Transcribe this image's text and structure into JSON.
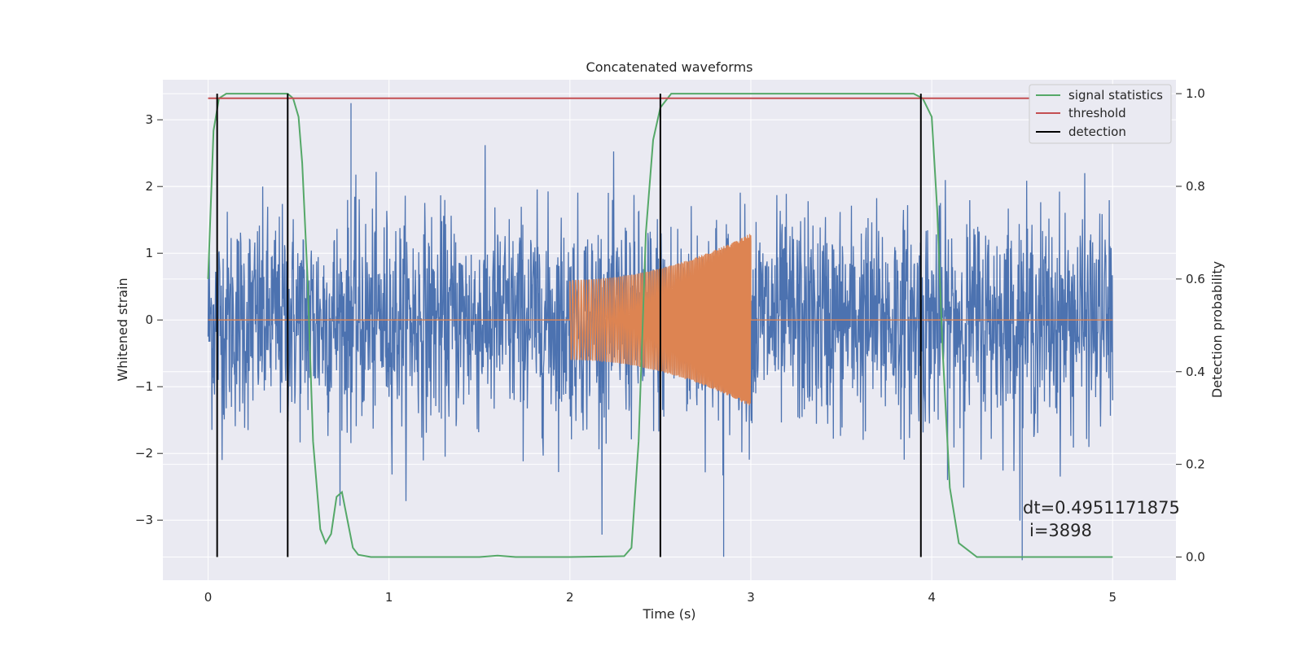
{
  "chart_data": {
    "type": "line",
    "title": "Concatenated waveforms",
    "xlabel": "Time (s)",
    "ylabel": "Whitened strain",
    "ylabel_right": "Detection probability",
    "xlim": [
      -0.25,
      5.35
    ],
    "ylim": [
      -3.9,
      3.6
    ],
    "ylim_right": [
      -0.05,
      1.03
    ],
    "xticks": [
      0,
      1,
      2,
      3,
      4,
      5
    ],
    "yticks": [
      -3,
      -2,
      -1,
      0,
      1,
      2,
      3
    ],
    "yticks_right": [
      0.0,
      0.2,
      0.4,
      0.6,
      0.8,
      1.0
    ],
    "xtick_labels": [
      "0",
      "1",
      "2",
      "3",
      "4",
      "5"
    ],
    "ytick_labels": [
      "−3",
      "−2",
      "−1",
      "0",
      "1",
      "2",
      "3"
    ],
    "ytick_right_labels": [
      "0.0",
      "0.2",
      "0.4",
      "0.6",
      "0.8",
      "1.0"
    ],
    "grid": true,
    "legend_position": "top-right",
    "colors": {
      "background": "#eaeaf2",
      "grid": "#ffffff",
      "noise": "#4c72b0",
      "signal": "#dd8452",
      "statistics": "#55a868",
      "threshold": "#c44e52",
      "detection": "#000000"
    },
    "series": [
      {
        "name": "",
        "axis": "left",
        "kind": "noise",
        "x_range": [
          0,
          5
        ],
        "typical_amplitude": 0.8,
        "peak_range": [
          -3.6,
          3.25
        ],
        "notable_peaks": [
          {
            "x": 0.79,
            "y": 3.25
          },
          {
            "x": 2.85,
            "y": -3.55
          },
          {
            "x": 4.5,
            "y": -3.6
          }
        ]
      },
      {
        "name": "",
        "axis": "left",
        "kind": "chirp",
        "x_range": [
          2,
          3
        ],
        "amplitude_start": 0.6,
        "amplitude_end": 1.3,
        "baseline": 0
      },
      {
        "name": "signal statistics",
        "axis": "right",
        "x": [
          0,
          0.03,
          0.06,
          0.1,
          0.2,
          0.3,
          0.44,
          0.47,
          0.5,
          0.52,
          0.55,
          0.58,
          0.62,
          0.65,
          0.68,
          0.71,
          0.74,
          0.77,
          0.8,
          0.83,
          0.9,
          1.2,
          1.5,
          1.6,
          1.7,
          2.0,
          2.3,
          2.34,
          2.38,
          2.42,
          2.46,
          2.5,
          2.56,
          2.7,
          3.0,
          3.5,
          3.9,
          3.95,
          4.0,
          4.03,
          4.06,
          4.1,
          4.15,
          4.25,
          4.5,
          5.0
        ],
        "values": [
          0.6,
          0.92,
          0.99,
          1.0,
          1.0,
          1.0,
          1.0,
          0.99,
          0.95,
          0.85,
          0.6,
          0.25,
          0.06,
          0.03,
          0.05,
          0.13,
          0.14,
          0.08,
          0.02,
          0.005,
          0.0,
          0.0,
          0.0,
          0.003,
          0.0,
          0.0,
          0.002,
          0.02,
          0.25,
          0.7,
          0.9,
          0.97,
          1.0,
          1.0,
          1.0,
          1.0,
          1.0,
          0.99,
          0.95,
          0.75,
          0.45,
          0.15,
          0.03,
          0.0,
          0.0,
          0.0
        ]
      },
      {
        "name": "threshold",
        "axis": "right",
        "x": [
          0,
          5
        ],
        "values": [
          0.99,
          0.99
        ]
      },
      {
        "name": "detection",
        "axis": "right",
        "x": [
          0.05,
          0.44,
          2.5,
          3.94
        ],
        "values": [
          1.0,
          1.0,
          1.0,
          1.0
        ]
      }
    ],
    "annotations": [
      "dt=0.4951171875",
      "i=3898"
    ]
  }
}
